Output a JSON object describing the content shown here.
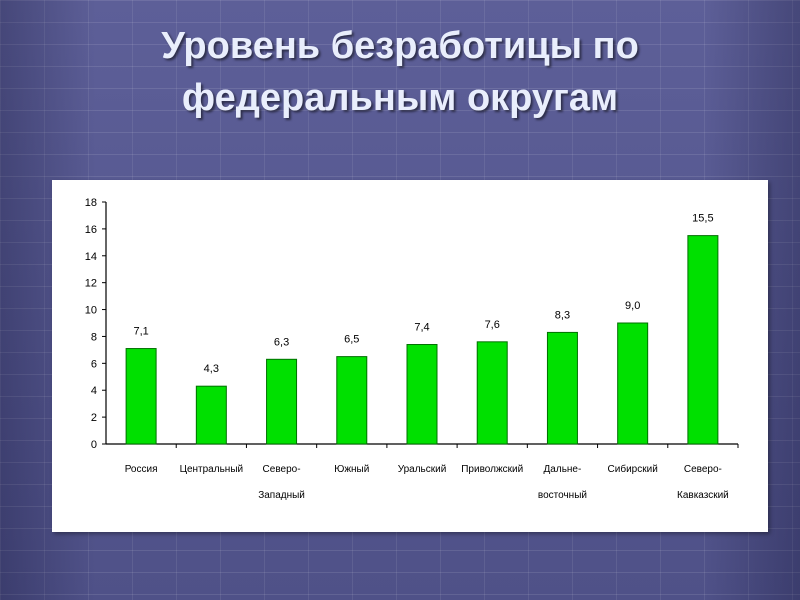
{
  "slide": {
    "title_line1": "Уровень безработицы по",
    "title_line2": "федеральным округам"
  },
  "colors": {
    "bar": "#00e000",
    "bar_stroke": "#007000",
    "axis": "#000000",
    "background": "#5b5d96",
    "title": "#e9eefc"
  },
  "chart_data": {
    "type": "bar",
    "title": "",
    "xlabel": "",
    "ylabel": "",
    "ylim": [
      0,
      18
    ],
    "yticks": [
      0,
      2,
      4,
      6,
      8,
      10,
      12,
      14,
      16,
      18
    ],
    "grid": false,
    "categories": [
      [
        "Россия"
      ],
      [
        "Центральный"
      ],
      [
        "Северо-",
        "Западный"
      ],
      [
        "Южный"
      ],
      [
        "Уральский"
      ],
      [
        "Приволжский"
      ],
      [
        "Дальне-",
        "восточный"
      ],
      [
        "Сибирский"
      ],
      [
        "Северо-",
        "Кавказский"
      ]
    ],
    "values": [
      7.1,
      4.3,
      6.3,
      6.5,
      7.4,
      7.6,
      8.3,
      9.0,
      15.5
    ],
    "value_labels": [
      "7,1",
      "4,3",
      "6,3",
      "6,5",
      "7,4",
      "7,6",
      "8,3",
      "9,0",
      "15,5"
    ]
  }
}
